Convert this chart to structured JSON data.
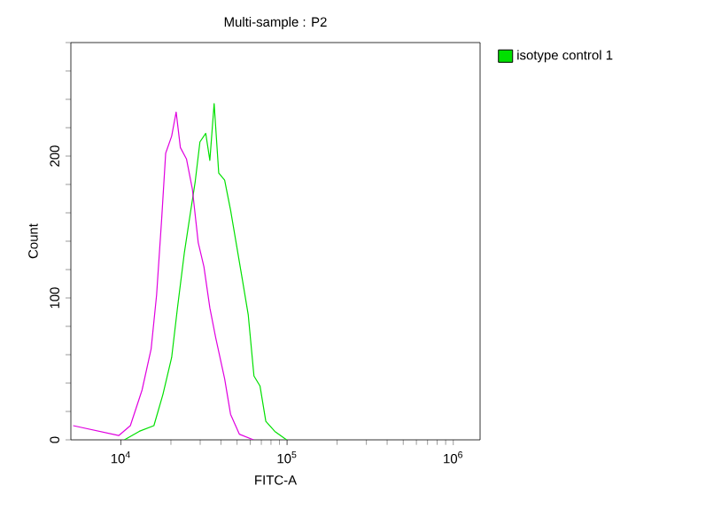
{
  "chart_data": {
    "type": "line",
    "title": "Multi-sample : P2",
    "xlabel": "FITC-A",
    "ylabel": "Count",
    "log": "x",
    "xlim": [
      5000,
      1450000
    ],
    "ylim": [
      0,
      280
    ],
    "xticks": [
      {
        "value": 10000,
        "label": "10$^{4}$"
      },
      {
        "value": 100000,
        "label": "10$^{5}$"
      },
      {
        "value": 1000000,
        "label": "10$^{6}$"
      }
    ],
    "yticks": [
      0,
      {
        "value": 20,
        "label": null
      },
      {
        "value": 40,
        "label": null
      },
      {
        "value": 60,
        "label": null
      },
      {
        "value": 80,
        "label": null
      },
      100,
      {
        "value": 120,
        "label": null
      },
      {
        "value": 140,
        "label": null
      },
      {
        "value": 160,
        "label": null
      },
      {
        "value": 180,
        "label": null
      },
      200,
      {
        "value": 220,
        "label": null
      },
      {
        "value": 240,
        "label": null
      },
      {
        "value": 260,
        "label": null
      },
      {
        "value": 280,
        "label": null
      }
    ],
    "legend": "top right",
    "grid": false,
    "marker": "none",
    "line_style": "solid",
    "series": [
      {
        "name": "isotype control 1",
        "color": "#00e000",
        "x": [
          10500,
          12900,
          15800,
          17900,
          20200,
          21900,
          24100,
          26200,
          28000,
          29900,
          32400,
          34300,
          36400,
          38800,
          42100,
          45700,
          49500,
          53800,
          58400,
          63200,
          68700,
          74500,
          84300,
          99300
        ],
        "values": [
          0,
          6,
          10,
          32,
          58,
          93,
          132,
          160,
          182,
          210,
          216,
          197,
          237,
          188,
          183,
          162,
          138,
          113,
          88,
          45,
          38,
          13,
          6,
          0
        ]
      },
      {
        "color": "#e000e0",
        "x": [
          5160,
          9700,
          11400,
          13400,
          15200,
          16400,
          17600,
          18600,
          20200,
          21500,
          22800,
          24800,
          26900,
          29200,
          31600,
          34300,
          37200,
          42100,
          45700,
          51600,
          62800
        ],
        "values": [
          10,
          3,
          10,
          35,
          64,
          102,
          156,
          202,
          214,
          231,
          206,
          198,
          177,
          139,
          122,
          93,
          72,
          43,
          18,
          4,
          0
        ]
      }
    ]
  }
}
